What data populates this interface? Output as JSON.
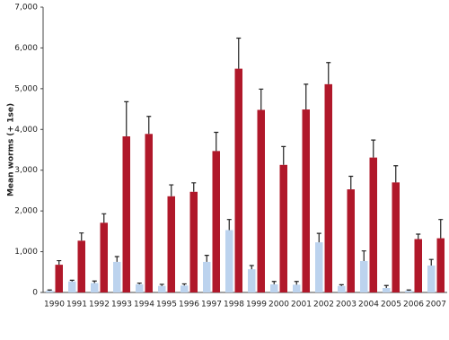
{
  "chart_data": {
    "type": "bar",
    "y_label": "Mean worms (+ 1se)",
    "categories": [
      "1990",
      "1991",
      "1992",
      "1993",
      "1994",
      "1995",
      "1996",
      "1997",
      "1998",
      "1999",
      "2000",
      "2001",
      "2002",
      "2003",
      "2004",
      "2005",
      "2006",
      "2007"
    ],
    "series": [
      {
        "color": "#bcd3ee",
        "values": [
          40,
          270,
          230,
          750,
          200,
          160,
          170,
          750,
          1530,
          570,
          200,
          190,
          1230,
          160,
          770,
          110,
          40,
          660
        ],
        "errors": [
          20,
          30,
          50,
          130,
          30,
          40,
          40,
          160,
          260,
          90,
          70,
          80,
          220,
          30,
          250,
          60,
          20,
          150
        ]
      },
      {
        "color": "#b0182a",
        "values": [
          680,
          1270,
          1710,
          3830,
          3890,
          2360,
          2470,
          3470,
          5490,
          4480,
          3130,
          4490,
          5110,
          2530,
          3310,
          2700,
          1310,
          1330
        ],
        "errors": [
          100,
          190,
          220,
          850,
          430,
          280,
          220,
          460,
          750,
          510,
          450,
          620,
          530,
          320,
          430,
          410,
          120,
          460
        ]
      }
    ],
    "ylim": [
      0,
      7000
    ],
    "yticks": [
      0,
      {
        "value": 1000,
        "label": "1,000"
      },
      {
        "value": 2000,
        "label": "2,000"
      },
      {
        "value": 3000,
        "label": "3,000"
      },
      {
        "value": 4000,
        "label": "4,000"
      },
      {
        "value": 5000,
        "label": "5,000"
      },
      {
        "value": 6000,
        "label": "6,000"
      },
      {
        "value": 7000,
        "label": "7,000"
      }
    ],
    "grid": false
  }
}
